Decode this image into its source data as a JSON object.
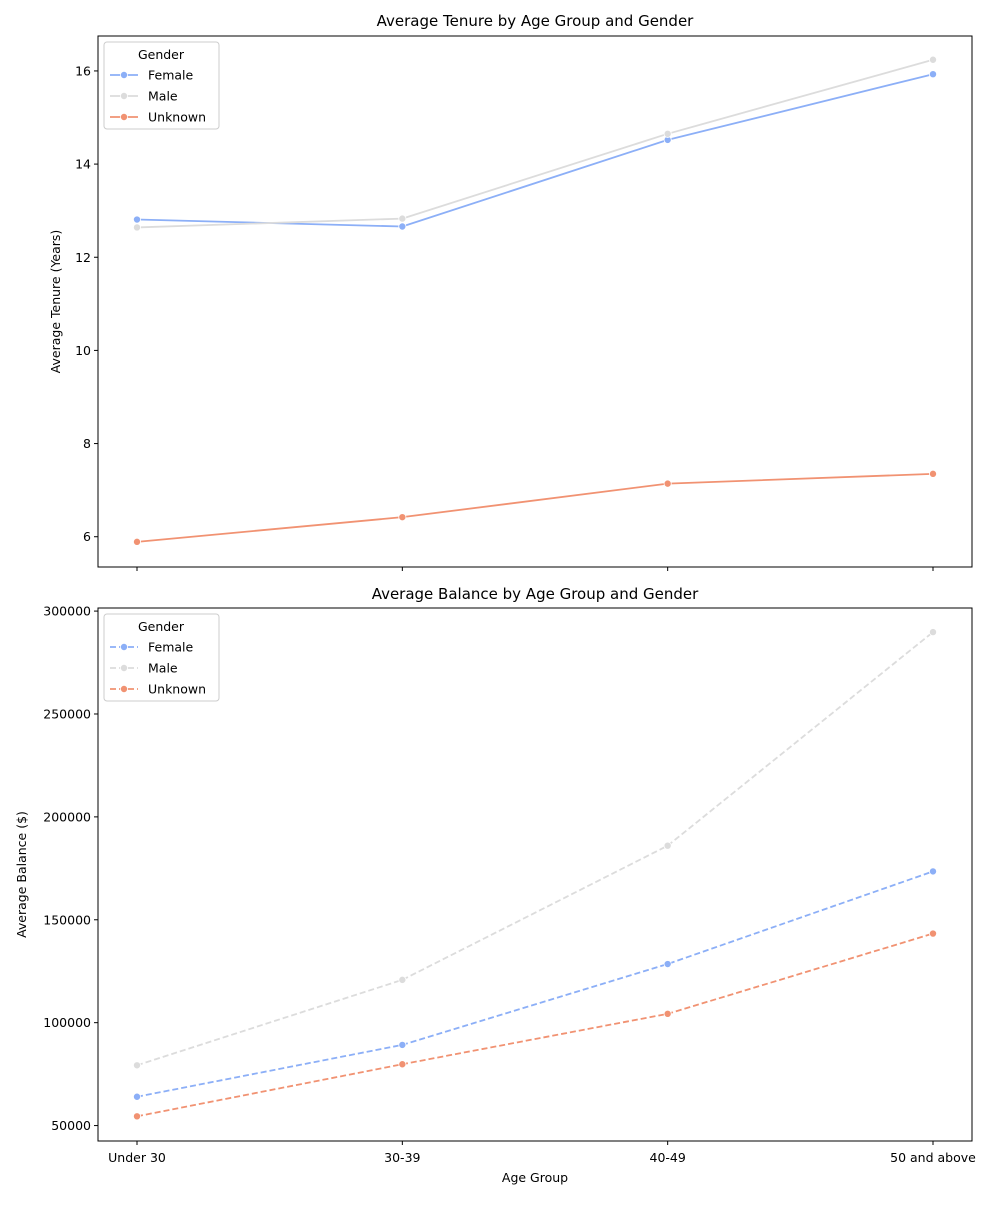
{
  "chart_data": [
    {
      "type": "line",
      "title": "Average Tenure by Age Group and Gender",
      "xlabel": "",
      "ylabel": "Average Tenure (Years)",
      "categories": [
        "Under 30",
        "30-39",
        "40-49",
        "50 and above"
      ],
      "ylim": [
        5.35,
        16.75
      ],
      "yticks": [
        6,
        8,
        10,
        12,
        14,
        16
      ],
      "show_x_tick_labels": false,
      "line_style": "solid",
      "grid": false,
      "legend": {
        "title": "Gender",
        "placement": "top-left"
      },
      "series": [
        {
          "name": "Female",
          "color": "#8caff7",
          "values": [
            12.81,
            12.66,
            14.52,
            15.93
          ]
        },
        {
          "name": "Male",
          "color": "#dcdcdc",
          "values": [
            12.64,
            12.83,
            14.65,
            16.24
          ]
        },
        {
          "name": "Unknown",
          "color": "#f19272",
          "values": [
            5.89,
            6.42,
            7.14,
            7.35
          ]
        }
      ]
    },
    {
      "type": "line",
      "title": "Average Balance by Age Group and Gender",
      "xlabel": "Age Group",
      "ylabel": "Average Balance ($)",
      "categories": [
        "Under 30",
        "30-39",
        "40-49",
        "50 and above"
      ],
      "ylim": [
        42500,
        301500
      ],
      "yticks": [
        50000,
        100000,
        150000,
        200000,
        250000,
        300000
      ],
      "show_x_tick_labels": true,
      "line_style": "dashed",
      "grid": false,
      "legend": {
        "title": "Gender",
        "placement": "top-left"
      },
      "series": [
        {
          "name": "Female",
          "color": "#8caff7",
          "values": [
            64000,
            89200,
            128500,
            173500
          ]
        },
        {
          "name": "Male",
          "color": "#dcdcdc",
          "values": [
            79300,
            120800,
            186000,
            289800
          ]
        },
        {
          "name": "Unknown",
          "color": "#f19272",
          "values": [
            54500,
            79800,
            104300,
            143300
          ]
        }
      ]
    }
  ]
}
